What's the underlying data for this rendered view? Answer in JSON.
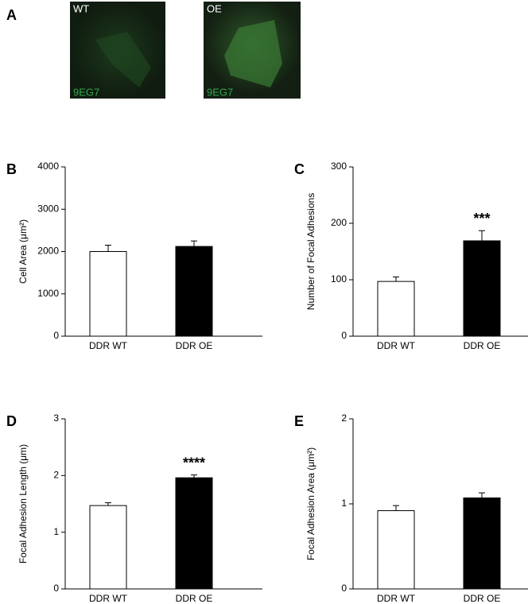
{
  "images": {
    "label": "A",
    "items": [
      {
        "label": "WT",
        "stain": "9EG7"
      },
      {
        "label": "OE",
        "stain": "9EG7"
      }
    ]
  },
  "chart_data": [
    {
      "type": "bar",
      "panel_label": "B",
      "y_label": "Cell Area (μm²)",
      "categories": [
        "DDR WT",
        "DDR OE"
      ],
      "values": [
        2000,
        2120
      ],
      "errors": [
        150,
        130
      ],
      "colors": [
        "#ffffff",
        "#000000"
      ],
      "significance": [
        null,
        null
      ],
      "ylim": [
        0,
        4000
      ],
      "yticks": [
        0,
        1000,
        2000,
        3000,
        4000
      ]
    },
    {
      "type": "bar",
      "panel_label": "C",
      "y_label": "Number of Focal Adhesions",
      "categories": [
        "DDR WT",
        "DDR OE"
      ],
      "values": [
        97,
        169
      ],
      "errors": [
        8,
        18
      ],
      "colors": [
        "#ffffff",
        "#000000"
      ],
      "significance": [
        null,
        "***"
      ],
      "ylim": [
        0,
        300
      ],
      "yticks": [
        0,
        100,
        200,
        300
      ]
    },
    {
      "type": "bar",
      "panel_label": "D",
      "y_label": "Focal Adhesion Length (μm)",
      "categories": [
        "DDR WT",
        "DDR OE"
      ],
      "values": [
        1.47,
        1.96
      ],
      "errors": [
        0.05,
        0.05
      ],
      "colors": [
        "#ffffff",
        "#000000"
      ],
      "significance": [
        null,
        "****"
      ],
      "ylim": [
        0,
        3
      ],
      "yticks": [
        0,
        1,
        2,
        3
      ]
    },
    {
      "type": "bar",
      "panel_label": "E",
      "y_label": "Focal Adhesion Area (μm²)",
      "categories": [
        "DDR WT",
        "DDR OE"
      ],
      "values": [
        0.92,
        1.07
      ],
      "errors": [
        0.06,
        0.06
      ],
      "colors": [
        "#ffffff",
        "#000000"
      ],
      "significance": [
        null,
        null
      ],
      "ylim": [
        0,
        2
      ],
      "yticks": [
        0,
        1,
        2
      ]
    }
  ]
}
